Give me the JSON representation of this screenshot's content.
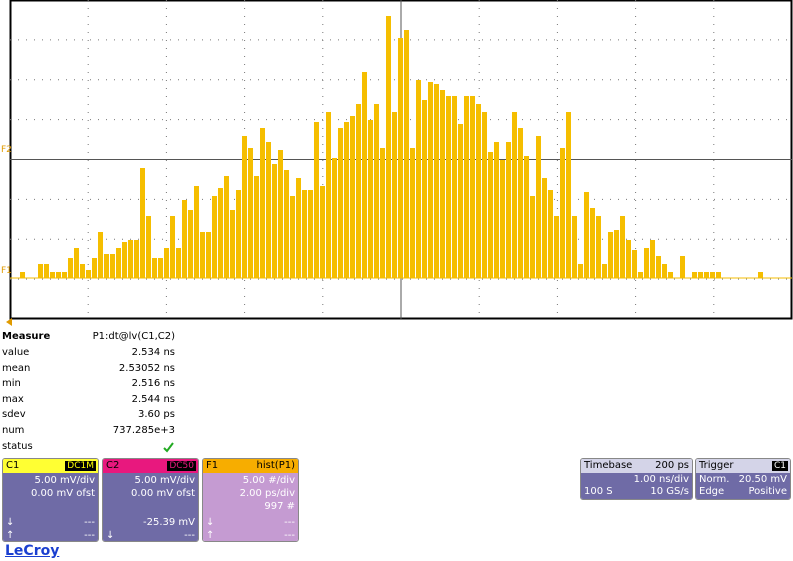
{
  "screen": {
    "markers": {
      "f2": "F2",
      "f1": "F1"
    },
    "histogram": {
      "values": [
        0.75,
        0,
        0,
        1.75,
        1.75,
        0.75,
        0.75,
        0.75,
        2.5,
        3.75,
        1.75,
        1,
        2.5,
        5.75,
        3,
        3,
        3.75,
        4.5,
        4.75,
        4.75,
        13.75,
        7.75,
        2.5,
        2.5,
        3.75,
        7.75,
        3.75,
        9.75,
        8.5,
        11.5,
        5.75,
        5.75,
        10.25,
        11.25,
        12.75,
        8.5,
        11,
        17.75,
        16.25,
        12.75,
        18.75,
        17,
        14.25,
        16,
        13.5,
        10.25,
        12.5,
        11,
        11,
        19.5,
        11.5,
        20.75,
        15,
        18.75,
        19.5,
        20.25,
        21.75,
        25.75,
        19.75,
        21.75,
        16.25,
        32.75,
        20.75,
        30,
        31,
        16.25,
        24.75,
        22.25,
        24.5,
        24.25,
        23.5,
        22.75,
        22.75,
        19.25,
        22.75,
        22.75,
        21.75,
        20.75,
        15.75,
        17,
        14.75,
        17,
        20.75,
        18.75,
        15.25,
        10.25,
        17.75,
        12.5,
        11,
        7.75,
        16.25,
        20.75,
        7.75,
        1.75,
        10.75,
        8.75,
        7.75,
        1.75,
        5.75,
        6,
        7.75,
        4.75,
        3.5,
        0.75,
        3.75,
        4.75,
        2.75,
        1.75,
        0.75,
        0,
        2.75,
        0,
        0.75,
        0.75,
        0.75,
        0.75,
        0.75,
        0,
        0,
        0,
        0,
        0,
        0,
        0.75
      ],
      "color": "#f5be00"
    }
  },
  "measure": {
    "header": [
      "Measure",
      "P1:dt@lv(C1,C2)"
    ],
    "rows": [
      [
        "value",
        "2.534 ns"
      ],
      [
        "mean",
        "2.53052 ns"
      ],
      [
        "min",
        "2.516 ns"
      ],
      [
        "max",
        "2.544 ns"
      ],
      [
        "sdev",
        "3.60 ps"
      ],
      [
        "num",
        "737.285e+3"
      ],
      [
        "status"
      ]
    ]
  },
  "panels": {
    "c1": {
      "name": "C1",
      "badge": "DC1M",
      "lines": [
        "5.00 mV/div",
        "0.00 mV ofst"
      ],
      "down": [
        "↓",
        "---"
      ],
      "up": [
        "↑",
        "---"
      ]
    },
    "c2": {
      "name": "C2",
      "badge": "DC50",
      "lines": [
        "5.00 mV/div",
        "0.00 mV ofst",
        "-25.39 mV"
      ],
      "down": [
        "↓",
        "---"
      ],
      "up": [
        "↑",
        "---"
      ]
    },
    "f1": {
      "name": "F1",
      "title": "hist(P1)",
      "lines": [
        "5.00 #/div",
        "2.00 ps/div",
        "997 #"
      ],
      "down": [
        "↓",
        "---"
      ],
      "up": [
        "↑",
        "---"
      ]
    },
    "timebase": {
      "title": "Timebase",
      "value": "200 ps",
      "rows": [
        [
          "",
          "1.00 ns/div"
        ],
        [
          "100 S",
          "10 GS/s"
        ]
      ]
    },
    "trigger": {
      "title": "Trigger",
      "badge": "C1",
      "rows": [
        [
          "Norm.",
          "20.50 mV"
        ],
        [
          "Edge",
          "Positive"
        ]
      ]
    }
  },
  "logo": "LeCroy"
}
